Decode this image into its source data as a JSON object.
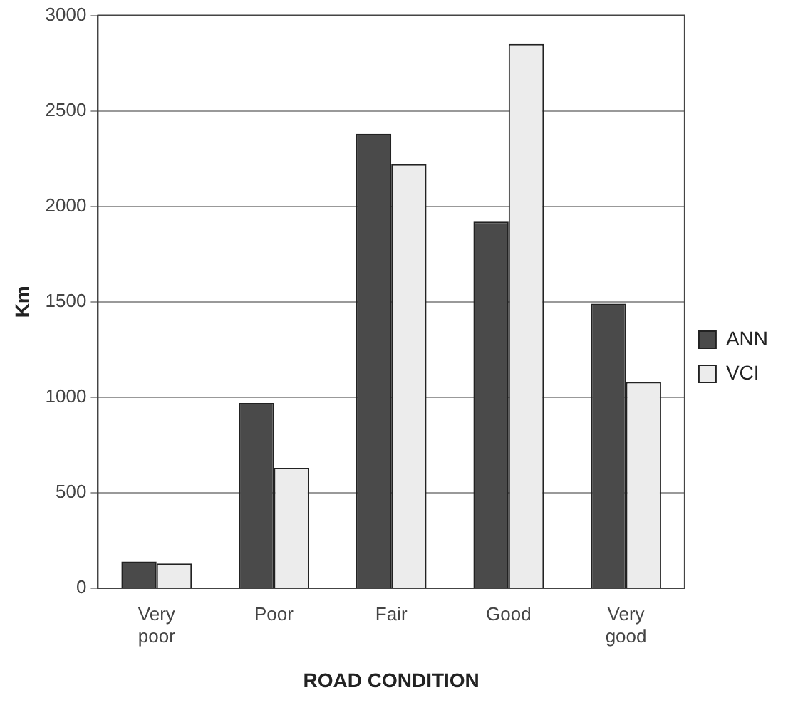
{
  "chart_data": {
    "type": "bar",
    "xlabel": "ROAD CONDITION",
    "ylabel": "Km",
    "categories": [
      "Very poor",
      "Poor",
      "Fair",
      "Good",
      "Very good"
    ],
    "series": [
      {
        "name": "ANN",
        "color": "#4a4a4a",
        "values": [
          140,
          970,
          2380,
          1920,
          1490
        ]
      },
      {
        "name": "VCI",
        "color": "#ececec",
        "values": [
          130,
          630,
          2220,
          2850,
          1080
        ]
      }
    ],
    "ylim": [
      0,
      3000
    ],
    "yticks": [
      0,
      500,
      1000,
      1500,
      2000,
      2500,
      3000
    ],
    "grid": "y",
    "legend": "right"
  }
}
